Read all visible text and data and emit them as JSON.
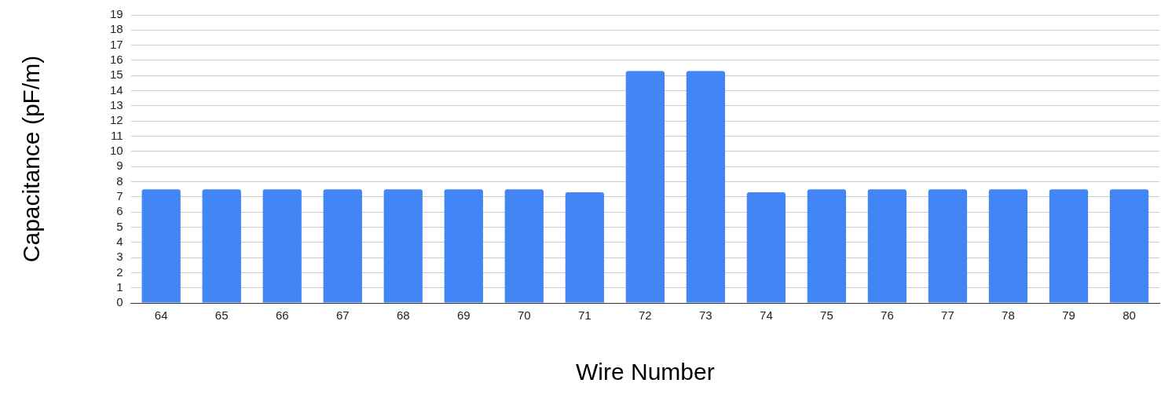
{
  "chart_data": {
    "type": "bar",
    "xlabel": "Wire Number",
    "ylabel": "Capacitance (pF/m)",
    "categories": [
      "64",
      "65",
      "66",
      "67",
      "68",
      "69",
      "70",
      "71",
      "72",
      "73",
      "74",
      "75",
      "76",
      "77",
      "78",
      "79",
      "80"
    ],
    "values": [
      7.5,
      7.5,
      7.5,
      7.5,
      7.5,
      7.5,
      7.5,
      7.3,
      15.3,
      15.3,
      7.3,
      7.5,
      7.5,
      7.5,
      7.5,
      7.5,
      7.5
    ],
    "color": "#4285f4",
    "ylim": [
      0,
      19
    ],
    "yticks": [
      0,
      1,
      2,
      3,
      4,
      5,
      6,
      7,
      8,
      9,
      10,
      11,
      12,
      13,
      14,
      15,
      16,
      17,
      18,
      19
    ],
    "grid": "y",
    "legend": false
  }
}
